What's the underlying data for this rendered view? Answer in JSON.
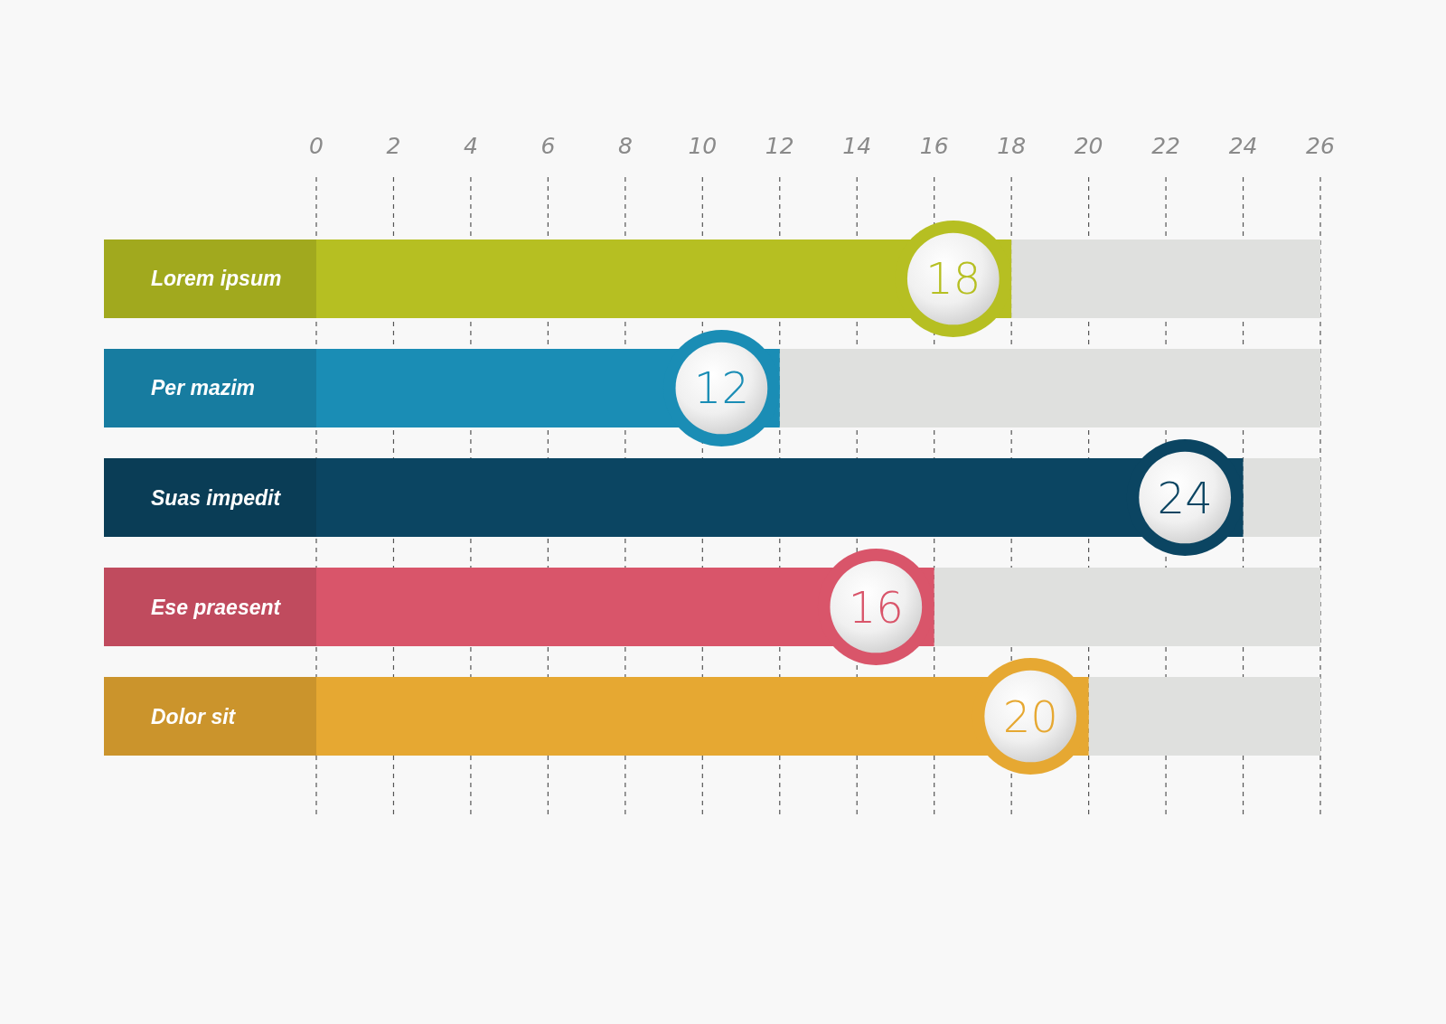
{
  "chart_data": {
    "type": "bar",
    "orientation": "horizontal",
    "categories": [
      "Lorem ipsum",
      "Per mazim",
      "Suas impedit",
      "Ese praesent",
      "Dolor sit"
    ],
    "values": [
      18,
      12,
      24,
      16,
      20
    ],
    "colors": [
      "#b6bf22",
      "#1a8db5",
      "#0b4562",
      "#d9556a",
      "#e6a832"
    ],
    "xlim": [
      0,
      26
    ],
    "xticks": [
      0,
      2,
      4,
      6,
      8,
      10,
      12,
      14,
      16,
      18,
      20,
      22,
      24,
      26
    ],
    "grid": "x",
    "data_labels": true
  }
}
